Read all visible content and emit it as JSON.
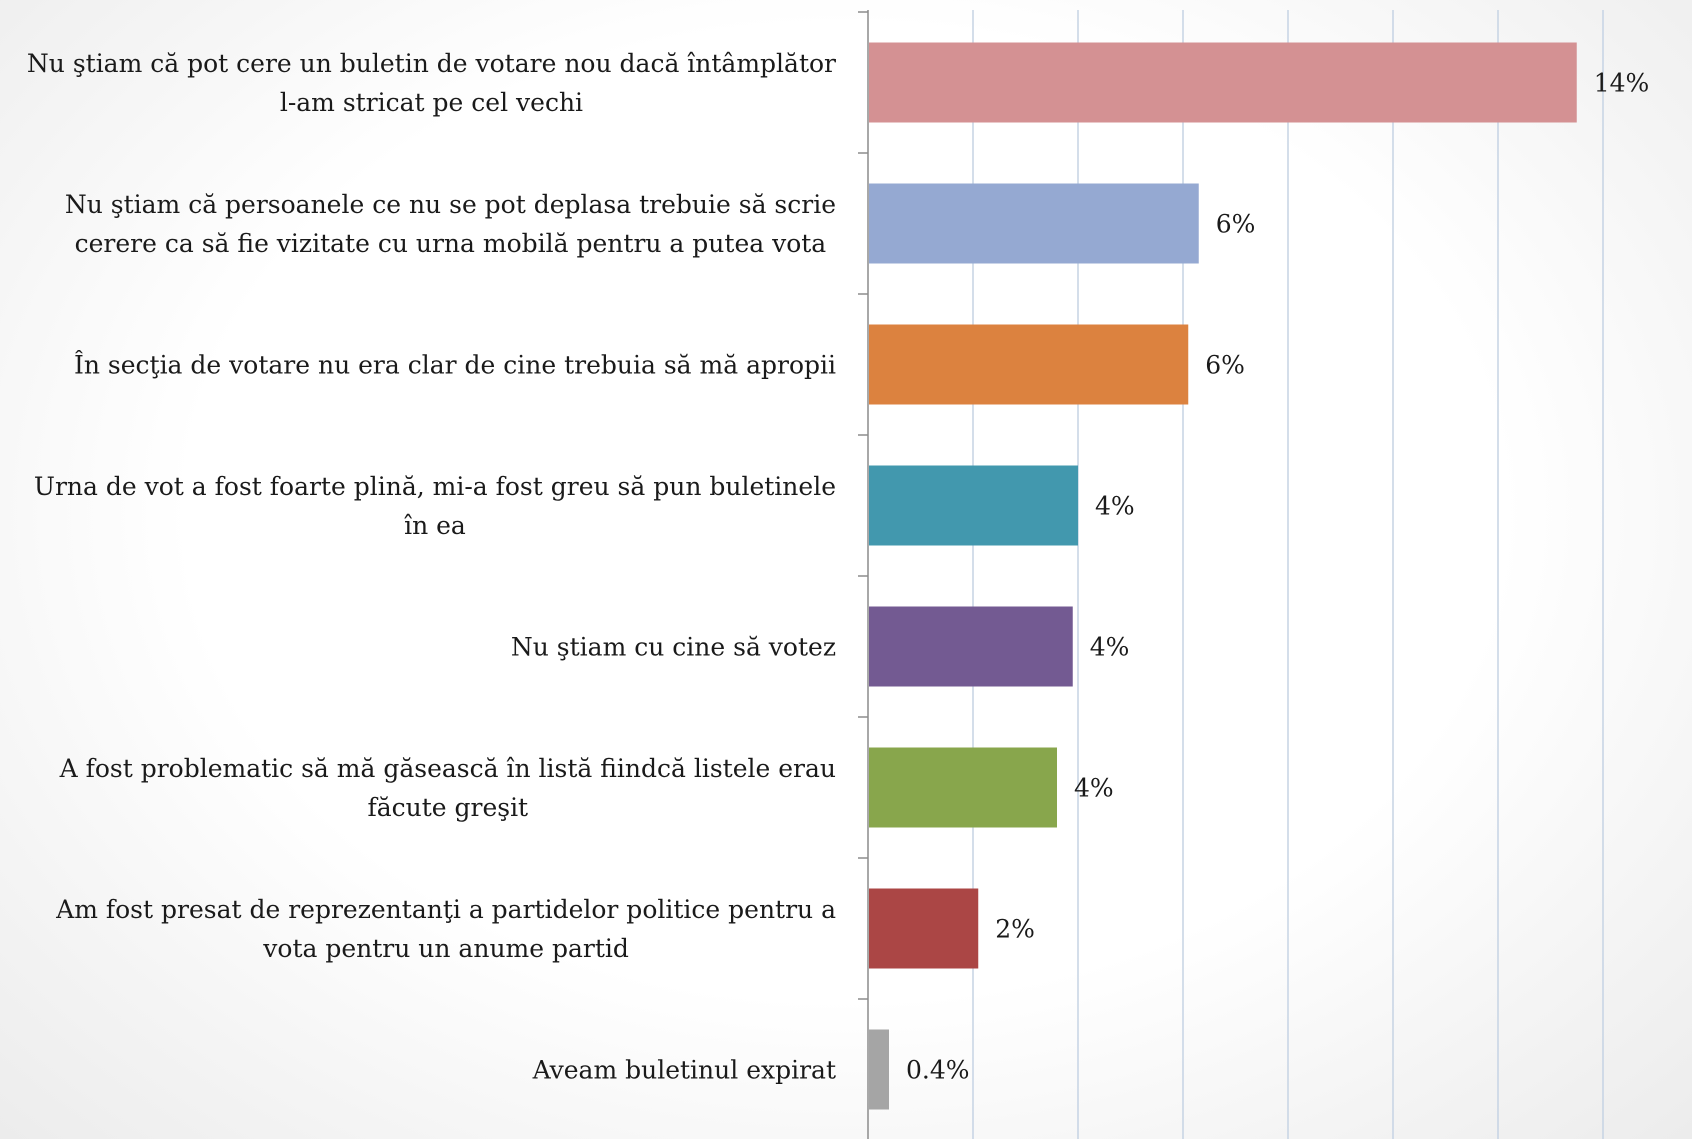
{
  "chart_data": {
    "type": "bar",
    "orientation": "horizontal",
    "categories": [
      [
        "Nu ştiam că pot cere un buletin de votare nou dacă întâmplător",
        "l-am stricat pe cel vechi"
      ],
      [
        "Nu ştiam că persoanele ce nu se pot deplasa trebuie să scrie",
        "cerere ca să fie vizitate cu urna mobilă pentru a putea vota"
      ],
      [
        "În secţia de votare nu era clar de cine trebuia să mă apropii"
      ],
      [
        "Urna de vot a fost foarte plină, mi-a fost greu să pun buletinele",
        "în ea"
      ],
      [
        "Nu ştiam cu cine să votez"
      ],
      [
        "A fost problematic să mă găsească în listă fiindcă listele erau",
        "făcute greşit"
      ],
      [
        "Am fost presat de reprezentanţi a partidelor politice pentru a",
        "vota pentru un anume partid"
      ],
      [
        "Aveam buletinul expirat"
      ]
    ],
    "values": [
      13.5,
      6.3,
      6.1,
      4.0,
      3.9,
      3.6,
      2.1,
      0.4
    ],
    "value_labels": [
      "14%",
      "6%",
      "6%",
      "4%",
      "4%",
      "4%",
      "2%",
      "0.4%"
    ],
    "colors": [
      "#d49193",
      "#95a9d2",
      "#dc823f",
      "#4298ae",
      "#735a92",
      "#88a64c",
      "#ab4645",
      "#a5a5a5"
    ],
    "xlim": [
      0,
      14
    ],
    "xtick_step": 2,
    "grid": true,
    "gridline_color": "#c6d3e4",
    "axis_color": "#8c8c8c",
    "legend": "none",
    "title": "",
    "xlabel": "",
    "ylabel": ""
  }
}
